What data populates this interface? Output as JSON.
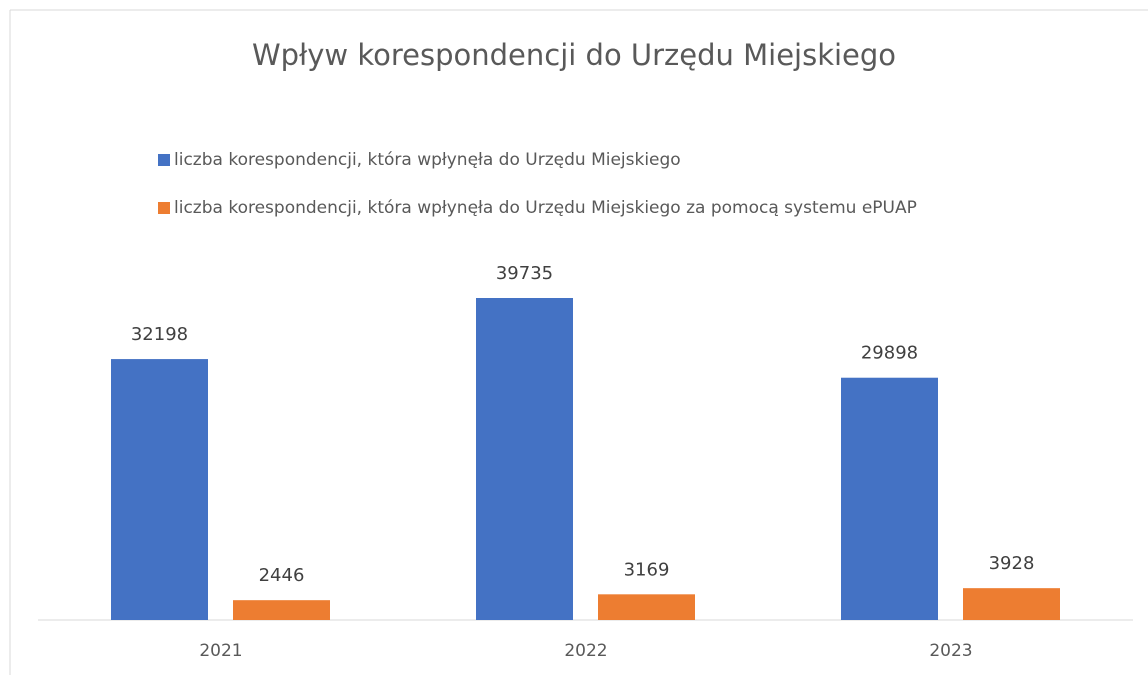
{
  "chart_data": {
    "type": "bar",
    "title": "Wpływ korespondencji do Urzędu Miejskiego",
    "categories": [
      "2021",
      "2022",
      "2023"
    ],
    "series": [
      {
        "name": "liczba korespondencji, która wpłynęła do Urzędu Miejskiego",
        "color": "#4472c4",
        "values": [
          32198,
          39735,
          29898
        ]
      },
      {
        "name": "liczba korespondencji, która wpłynęła do Urzędu Miejskiego za pomocą systemu ePUAP",
        "color": "#ed7d31",
        "values": [
          2446,
          3169,
          3928
        ]
      }
    ]
  }
}
